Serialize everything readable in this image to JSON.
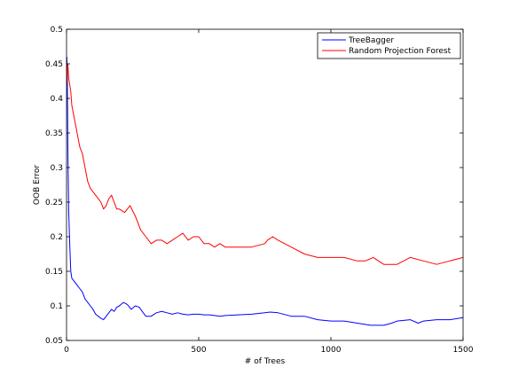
{
  "chart_data": {
    "type": "line",
    "title": "",
    "xlabel": "# of Trees",
    "ylabel": "OOB Error",
    "xlim": [
      0,
      1500
    ],
    "ylim": [
      0.05,
      0.5
    ],
    "xticks": [
      0,
      500,
      1000,
      1500
    ],
    "yticks": [
      0.05,
      0.1,
      0.15,
      0.2,
      0.25,
      0.3,
      0.35,
      0.4,
      0.45,
      0.5
    ],
    "grid": false,
    "legend_position": "top-right",
    "series": [
      {
        "name": "TreeBagger",
        "color": "#0000ff",
        "x": [
          1,
          3,
          5,
          8,
          12,
          16,
          20,
          30,
          40,
          50,
          60,
          70,
          80,
          90,
          100,
          110,
          120,
          130,
          140,
          150,
          160,
          170,
          180,
          190,
          200,
          215,
          230,
          245,
          260,
          275,
          290,
          300,
          320,
          340,
          360,
          380,
          400,
          420,
          440,
          460,
          480,
          500,
          520,
          540,
          560,
          580,
          600,
          650,
          700,
          750,
          770,
          800,
          850,
          900,
          950,
          1000,
          1050,
          1100,
          1150,
          1200,
          1230,
          1250,
          1300,
          1330,
          1350,
          1400,
          1450,
          1500
        ],
        "values": [
          0.46,
          0.43,
          0.33,
          0.24,
          0.19,
          0.15,
          0.14,
          0.135,
          0.13,
          0.125,
          0.12,
          0.11,
          0.105,
          0.1,
          0.095,
          0.088,
          0.085,
          0.082,
          0.08,
          0.085,
          0.09,
          0.095,
          0.092,
          0.098,
          0.1,
          0.105,
          0.102,
          0.095,
          0.1,
          0.098,
          0.09,
          0.085,
          0.085,
          0.09,
          0.092,
          0.09,
          0.088,
          0.09,
          0.088,
          0.087,
          0.088,
          0.088,
          0.087,
          0.087,
          0.086,
          0.085,
          0.086,
          0.087,
          0.088,
          0.09,
          0.091,
          0.09,
          0.085,
          0.085,
          0.08,
          0.078,
          0.078,
          0.075,
          0.072,
          0.072,
          0.075,
          0.078,
          0.08,
          0.075,
          0.078,
          0.08,
          0.08,
          0.083
        ]
      },
      {
        "name": "Random Projection Forest",
        "color": "#ff0000",
        "x": [
          1,
          3,
          5,
          8,
          12,
          16,
          20,
          25,
          30,
          35,
          40,
          50,
          60,
          70,
          80,
          90,
          100,
          110,
          120,
          130,
          140,
          150,
          160,
          170,
          180,
          190,
          200,
          220,
          240,
          260,
          280,
          300,
          320,
          340,
          360,
          380,
          400,
          420,
          440,
          460,
          480,
          500,
          520,
          540,
          560,
          580,
          600,
          650,
          700,
          750,
          760,
          780,
          800,
          850,
          900,
          950,
          1000,
          1050,
          1100,
          1130,
          1160,
          1200,
          1250,
          1300,
          1350,
          1400,
          1450,
          1500
        ],
        "values": [
          0.42,
          0.44,
          0.45,
          0.43,
          0.42,
          0.41,
          0.39,
          0.38,
          0.37,
          0.36,
          0.35,
          0.33,
          0.32,
          0.3,
          0.28,
          0.27,
          0.265,
          0.26,
          0.255,
          0.25,
          0.24,
          0.245,
          0.255,
          0.26,
          0.25,
          0.24,
          0.24,
          0.235,
          0.245,
          0.23,
          0.21,
          0.2,
          0.19,
          0.195,
          0.195,
          0.19,
          0.195,
          0.2,
          0.205,
          0.195,
          0.2,
          0.2,
          0.19,
          0.19,
          0.185,
          0.19,
          0.185,
          0.185,
          0.185,
          0.19,
          0.195,
          0.2,
          0.195,
          0.185,
          0.175,
          0.17,
          0.17,
          0.17,
          0.165,
          0.165,
          0.17,
          0.16,
          0.16,
          0.17,
          0.165,
          0.16,
          0.165,
          0.17
        ]
      }
    ]
  }
}
